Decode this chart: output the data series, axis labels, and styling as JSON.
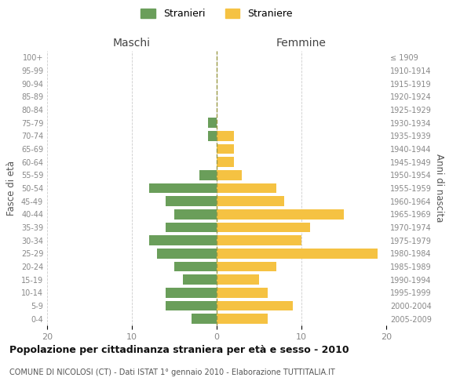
{
  "age_groups": [
    "100+",
    "95-99",
    "90-94",
    "85-89",
    "80-84",
    "75-79",
    "70-74",
    "65-69",
    "60-64",
    "55-59",
    "50-54",
    "45-49",
    "40-44",
    "35-39",
    "30-34",
    "25-29",
    "20-24",
    "15-19",
    "10-14",
    "5-9",
    "0-4"
  ],
  "birth_years": [
    "≤ 1909",
    "1910-1914",
    "1915-1919",
    "1920-1924",
    "1925-1929",
    "1930-1934",
    "1935-1939",
    "1940-1944",
    "1945-1949",
    "1950-1954",
    "1955-1959",
    "1960-1964",
    "1965-1969",
    "1970-1974",
    "1975-1979",
    "1980-1984",
    "1985-1989",
    "1990-1994",
    "1995-1999",
    "2000-2004",
    "2005-2009"
  ],
  "maschi": [
    0,
    0,
    0,
    0,
    0,
    1,
    1,
    0,
    0,
    2,
    8,
    6,
    5,
    6,
    8,
    7,
    5,
    4,
    6,
    6,
    3
  ],
  "femmine": [
    0,
    0,
    0,
    0,
    0,
    0,
    2,
    2,
    2,
    3,
    7,
    8,
    15,
    11,
    10,
    19,
    7,
    5,
    6,
    9,
    6
  ],
  "color_maschi": "#6a9e5a",
  "color_femmine": "#f5c242",
  "title": "Popolazione per cittadinanza straniera per età e sesso - 2010",
  "subtitle": "COMUNE DI NICOLOSI (CT) - Dati ISTAT 1° gennaio 2010 - Elaborazione TUTTITALIA.IT",
  "xlabel_left": "Maschi",
  "xlabel_right": "Femmine",
  "ylabel_left": "Fasce di età",
  "ylabel_right": "Anni di nascita",
  "legend_maschi": "Stranieri",
  "legend_femmine": "Straniere",
  "xlim": 20,
  "background_color": "#ffffff",
  "grid_color": "#cccccc"
}
